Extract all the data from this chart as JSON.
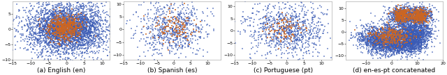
{
  "subplots": [
    {
      "label": "(a) English (en)",
      "n_blue": 3500,
      "n_orange": 600,
      "cluster_centers_blue": [
        [
          0,
          0
        ]
      ],
      "cluster_spreads_blue": [
        [
          5.5,
          4.0
        ]
      ],
      "cluster_centers_orange": [
        [
          -0.5,
          0.5
        ]
      ],
      "cluster_spreads_orange": [
        [
          2.5,
          2.0
        ]
      ],
      "xlim": [
        -15,
        12
      ],
      "ylim": [
        -10,
        9
      ]
    },
    {
      "label": "(b) Spanish (es)",
      "n_blue": 700,
      "n_orange": 130,
      "cluster_centers_blue": [
        [
          0,
          0
        ]
      ],
      "cluster_spreads_blue": [
        [
          5.5,
          5.5
        ]
      ],
      "cluster_centers_orange": [
        [
          0,
          0.5
        ]
      ],
      "cluster_spreads_orange": [
        [
          3.0,
          3.0
        ]
      ],
      "xlim": [
        -15,
        14
      ],
      "ylim": [
        -12,
        11
      ]
    },
    {
      "label": "(c) Portuguese (pt)",
      "n_blue": 900,
      "n_orange": 100,
      "cluster_centers_blue": [
        [
          0,
          0
        ]
      ],
      "cluster_spreads_blue": [
        [
          6.0,
          5.5
        ]
      ],
      "cluster_centers_orange": [
        [
          -1,
          1
        ]
      ],
      "cluster_spreads_orange": [
        [
          2.5,
          2.5
        ]
      ],
      "xlim": [
        -15,
        13
      ],
      "ylim": [
        -12,
        12
      ]
    },
    {
      "label": "(d) en-es-pt concatenated",
      "n_blue": 5000,
      "n_orange": 900,
      "cluster_centers_blue": [
        [
          0,
          -2
        ],
        [
          4,
          7
        ],
        [
          11,
          7
        ],
        [
          -6,
          -3
        ],
        [
          4,
          -1
        ],
        [
          10,
          0
        ],
        [
          0,
          -6
        ],
        [
          8,
          -5
        ]
      ],
      "cluster_spreads_blue": [
        [
          7,
          3.5
        ],
        [
          2.5,
          2.0
        ],
        [
          2.5,
          2.0
        ],
        [
          3.5,
          2.5
        ],
        [
          4.5,
          2.5
        ],
        [
          3.0,
          2.5
        ],
        [
          4.0,
          2.0
        ],
        [
          3.0,
          2.0
        ]
      ],
      "cluster_centers_orange": [
        [
          0,
          -2
        ],
        [
          4,
          7
        ],
        [
          11,
          7
        ]
      ],
      "cluster_spreads_orange": [
        [
          4.0,
          2.0
        ],
        [
          1.8,
          1.5
        ],
        [
          1.8,
          1.5
        ]
      ],
      "xlim": [
        -18,
        20
      ],
      "ylim": [
        -12,
        13
      ]
    }
  ],
  "blue_color": "#3a5bb5",
  "orange_color": "#cc6622",
  "dot_size": 2.0,
  "marker": "s",
  "bg_color": "#ffffff",
  "label_fontsize": 6.5,
  "tick_fontsize": 4.5,
  "alpha_blue": 0.55,
  "alpha_orange": 0.75
}
